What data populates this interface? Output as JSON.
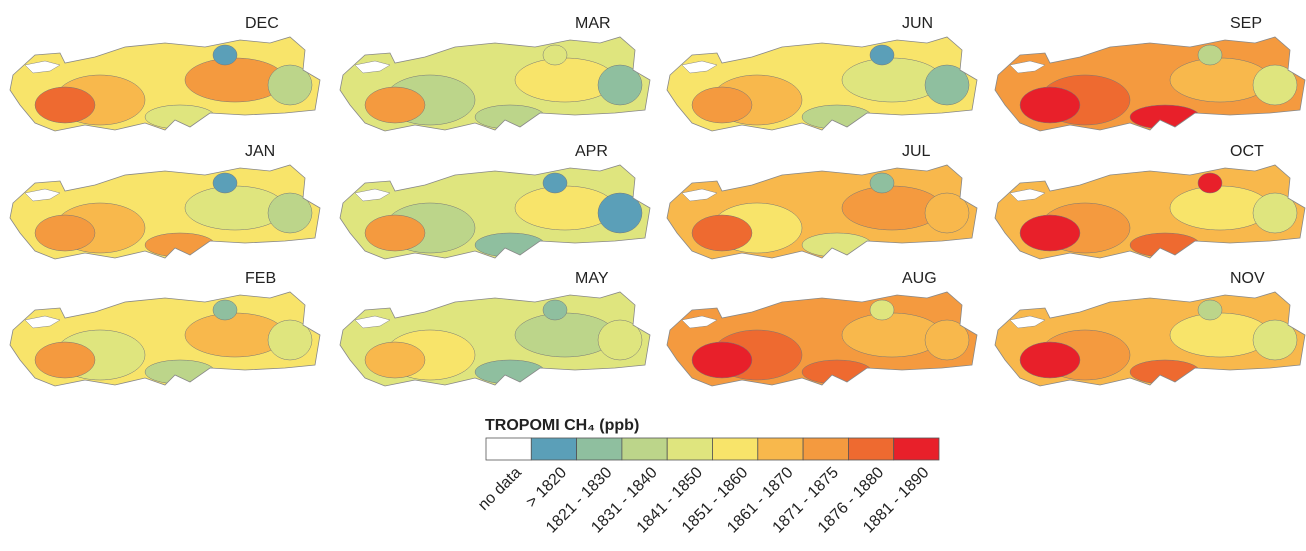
{
  "panels": [
    {
      "label": "DEC",
      "colors": [
        "#f8e46a",
        "#f8b84c",
        "#f49a3f",
        "#dfe57e",
        "#bcd58a",
        "#5b9fb8",
        "#ee6a30"
      ]
    },
    {
      "label": "MAR",
      "colors": [
        "#dfe57e",
        "#bcd58a",
        "#f8e46a",
        "#bcd58a",
        "#8fbf9f",
        "#dfe57e",
        "#f49a3f"
      ]
    },
    {
      "label": "JUN",
      "colors": [
        "#f8e46a",
        "#f8b84c",
        "#dfe57e",
        "#bcd58a",
        "#8fbf9f",
        "#5b9fb8",
        "#f49a3f"
      ]
    },
    {
      "label": "SEP",
      "colors": [
        "#f49a3f",
        "#ee6a30",
        "#f8b84c",
        "#e8202a",
        "#dfe57e",
        "#bcd58a",
        "#e8202a"
      ]
    },
    {
      "label": "JAN",
      "colors": [
        "#f8e46a",
        "#f8b84c",
        "#dfe57e",
        "#f49a3f",
        "#bcd58a",
        "#5b9fb8",
        "#f49a3f"
      ]
    },
    {
      "label": "APR",
      "colors": [
        "#dfe57e",
        "#bcd58a",
        "#f8e46a",
        "#8fbf9f",
        "#5b9fb8",
        "#5b9fb8",
        "#f49a3f"
      ]
    },
    {
      "label": "JUL",
      "colors": [
        "#f8b84c",
        "#f8e46a",
        "#f49a3f",
        "#dfe57e",
        "#f8b84c",
        "#8fbf9f",
        "#ee6a30"
      ]
    },
    {
      "label": "OCT",
      "colors": [
        "#f8b84c",
        "#f49a3f",
        "#f8e46a",
        "#ee6a30",
        "#dfe57e",
        "#e8202a",
        "#e8202a"
      ]
    },
    {
      "label": "FEB",
      "colors": [
        "#f8e46a",
        "#dfe57e",
        "#f8b84c",
        "#bcd58a",
        "#dfe57e",
        "#8fbf9f",
        "#f49a3f"
      ]
    },
    {
      "label": "MAY",
      "colors": [
        "#dfe57e",
        "#f8e46a",
        "#bcd58a",
        "#8fbf9f",
        "#dfe57e",
        "#8fbf9f",
        "#f8b84c"
      ]
    },
    {
      "label": "AUG",
      "colors": [
        "#f49a3f",
        "#ee6a30",
        "#f8b84c",
        "#ee6a30",
        "#f8b84c",
        "#dfe57e",
        "#e8202a"
      ]
    },
    {
      "label": "NOV",
      "colors": [
        "#f8b84c",
        "#f49a3f",
        "#f8e46a",
        "#ee6a30",
        "#dfe57e",
        "#bcd58a",
        "#e8202a"
      ]
    }
  ],
  "legend": {
    "title": "TROPOMI CH₄ (ppb)",
    "classes": [
      {
        "label": "no data",
        "color": "#ffffff"
      },
      {
        "label": "> 1820",
        "color": "#5b9fb8"
      },
      {
        "label": "1821 - 1830",
        "color": "#8fbf9f"
      },
      {
        "label": "1831 - 1840",
        "color": "#bcd58a"
      },
      {
        "label": "1841 - 1850",
        "color": "#dfe57e"
      },
      {
        "label": "1851 - 1860",
        "color": "#f8e46a"
      },
      {
        "label": "1861 - 1870",
        "color": "#f8b84c"
      },
      {
        "label": "1871 - 1875",
        "color": "#f49a3f"
      },
      {
        "label": "1876 - 1880",
        "color": "#ee6a30"
      },
      {
        "label": "1881 - 1890",
        "color": "#e8202a"
      }
    ]
  }
}
